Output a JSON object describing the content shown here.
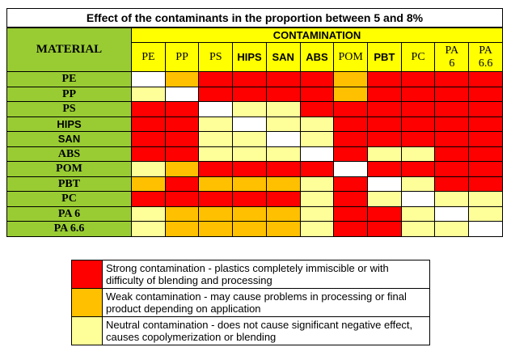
{
  "title": "Effect of the contaminants in the proportion between 5 and 8%",
  "corner_label": "MATERIAL",
  "contamination_label": "CONTAMINATION",
  "columns": [
    "PE",
    "PP",
    "PS",
    "HIPS",
    "SAN",
    "ABS",
    "POM",
    "PBT",
    "PC",
    "PA\n6",
    "PA\n6.6"
  ],
  "rows": [
    {
      "material": "PE",
      "cells": [
        "x",
        "w",
        "s",
        "s",
        "s",
        "s",
        "w",
        "s",
        "s",
        "s",
        "s"
      ]
    },
    {
      "material": "PP",
      "cells": [
        "n",
        "x",
        "s",
        "s",
        "s",
        "s",
        "w",
        "s",
        "s",
        "s",
        "s"
      ]
    },
    {
      "material": "PS",
      "cells": [
        "s",
        "s",
        "x",
        "n",
        "n",
        "s",
        "s",
        "s",
        "s",
        "s",
        "s"
      ]
    },
    {
      "material": "HIPS",
      "cells": [
        "s",
        "s",
        "n",
        "x",
        "n",
        "n",
        "s",
        "s",
        "s",
        "s",
        "s"
      ]
    },
    {
      "material": "SAN",
      "cells": [
        "s",
        "s",
        "n",
        "n",
        "x",
        "n",
        "s",
        "s",
        "s",
        "s",
        "s"
      ]
    },
    {
      "material": "ABS",
      "cells": [
        "s",
        "s",
        "n",
        "n",
        "n",
        "x",
        "s",
        "n",
        "n",
        "s",
        "s"
      ]
    },
    {
      "material": "POM",
      "cells": [
        "n",
        "w",
        "s",
        "s",
        "s",
        "s",
        "x",
        "s",
        "s",
        "s",
        "s"
      ]
    },
    {
      "material": "PBT",
      "cells": [
        "w",
        "s",
        "w",
        "w",
        "w",
        "n",
        "s",
        "x",
        "n",
        "s",
        "s"
      ]
    },
    {
      "material": "PC",
      "cells": [
        "s",
        "s",
        "s",
        "s",
        "s",
        "n",
        "s",
        "n",
        "x",
        "n",
        "n"
      ]
    },
    {
      "material": "PA 6",
      "cells": [
        "n",
        "w",
        "w",
        "w",
        "w",
        "n",
        "s",
        "s",
        "n",
        "x",
        "n"
      ]
    },
    {
      "material": "PA 6.6",
      "cells": [
        "n",
        "w",
        "w",
        "w",
        "w",
        "n",
        "s",
        "s",
        "n",
        "n",
        "x"
      ]
    }
  ],
  "legend": [
    {
      "level": "s",
      "text": "Strong contamination - plastics completely immiscible or with difficulty of blending and processing"
    },
    {
      "level": "w",
      "text": "Weak contamination - may cause problems in processing or final product depending on application"
    },
    {
      "level": "n",
      "text": "Neutral contamination - does not cause significant negative effect, causes copolymerization or blending"
    }
  ],
  "colors": {
    "strong": "#ff0000",
    "weak": "#ffc000",
    "neutral": "#ffff99",
    "self": "#ffffff",
    "header": "#ffff00",
    "material": "#99cc33"
  }
}
